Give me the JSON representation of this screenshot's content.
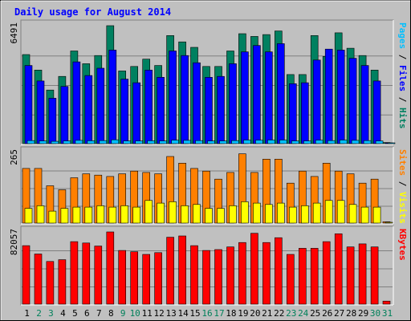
{
  "chart_data": {
    "type": "bar",
    "title": "Daily usage for August 2014",
    "categories": [
      "1",
      "2",
      "3",
      "4",
      "5",
      "6",
      "7",
      "8",
      "9",
      "10",
      "11",
      "12",
      "13",
      "14",
      "15",
      "16",
      "17",
      "18",
      "19",
      "20",
      "21",
      "22",
      "23",
      "24",
      "25",
      "26",
      "27",
      "28",
      "29",
      "30",
      "31"
    ],
    "weekend_days": [
      "2",
      "3",
      "9",
      "10",
      "16",
      "17",
      "23",
      "24",
      "30",
      "31"
    ],
    "panels": [
      {
        "id": "hits-panel",
        "ymax_label": "6491",
        "ymax": 6491,
        "side_label_parts": [
          {
            "text": "Pages",
            "color": "#00bfff"
          },
          {
            "text": " / ",
            "color": "#000000"
          },
          {
            "text": "Files",
            "color": "#0000ff"
          },
          {
            "text": " / ",
            "color": "#000000"
          },
          {
            "text": "Hits",
            "color": "#008060"
          }
        ],
        "series": [
          {
            "name": "Hits",
            "color": "#008060",
            "values": [
              4900,
              4050,
              2950,
              3700,
              5100,
              4400,
              4850,
              6491,
              4000,
              4250,
              4650,
              4300,
              5950,
              5600,
              5300,
              4250,
              4250,
              5100,
              6050,
              5900,
              6000,
              6200,
              3800,
              3800,
              5950,
              4800,
              6100,
              5250,
              4850,
              4050,
              60
            ]
          },
          {
            "name": "Files",
            "color": "#0000ff",
            "values": [
              4300,
              3450,
              2500,
              3150,
              4500,
              3750,
              4150,
              5150,
              3550,
              3350,
              4050,
              3650,
              5100,
              4850,
              4450,
              3650,
              3700,
              4400,
              5050,
              5400,
              5050,
              5500,
              3300,
              3350,
              4600,
              5200,
              5150,
              4700,
              4300,
              3450,
              45
            ]
          },
          {
            "name": "Pages",
            "color": "#00bfff",
            "values": [
              170,
              150,
              130,
              150,
              180,
              160,
              170,
              210,
              150,
              150,
              160,
              150,
              190,
              180,
              170,
              150,
              150,
              170,
              200,
              190,
              200,
              200,
              150,
              150,
              190,
              170,
              200,
              180,
              170,
              150,
              5
            ]
          }
        ]
      },
      {
        "id": "sites-panel",
        "ymax_label": "265",
        "ymax": 265,
        "side_label_parts": [
          {
            "text": "Sites",
            "color": "#ff8000"
          },
          {
            "text": " / ",
            "color": "#000000"
          },
          {
            "text": "Visits",
            "color": "#ffff00"
          }
        ],
        "series": [
          {
            "name": "Visits",
            "color": "#ff8000",
            "values": [
              205,
              205,
              140,
              125,
              170,
              185,
              180,
              175,
              185,
              195,
              190,
              185,
              250,
              225,
              205,
              195,
              165,
              190,
              260,
              190,
              240,
              240,
              150,
              195,
              175,
              225,
              195,
              185,
              150,
              165,
              5
            ]
          },
          {
            "name": "Sites",
            "color": "#ffff00",
            "values": [
              55,
              65,
              45,
              55,
              60,
              60,
              65,
              60,
              65,
              60,
              85,
              75,
              80,
              65,
              70,
              55,
              55,
              65,
              80,
              75,
              70,
              75,
              60,
              65,
              75,
              85,
              85,
              70,
              60,
              60,
              2
            ]
          }
        ]
      },
      {
        "id": "kbytes-panel",
        "ymax_label": "82057",
        "ymax": 82057,
        "side_label_parts": [
          {
            "text": "KBytes",
            "color": "#ff0000"
          }
        ],
        "series": [
          {
            "name": "KBytes",
            "color": "#ff0000",
            "values": [
              66500,
              57000,
              48500,
              50500,
              71000,
              69500,
              66000,
              82057,
              61000,
              59500,
              56500,
              58500,
              76000,
              77500,
              66500,
              61000,
              62000,
              65000,
              70000,
              80500,
              70000,
              75500,
              56500,
              63500,
              63500,
              71000,
              80000,
              65000,
              68500,
              65000,
              3500
            ]
          }
        ]
      }
    ]
  }
}
